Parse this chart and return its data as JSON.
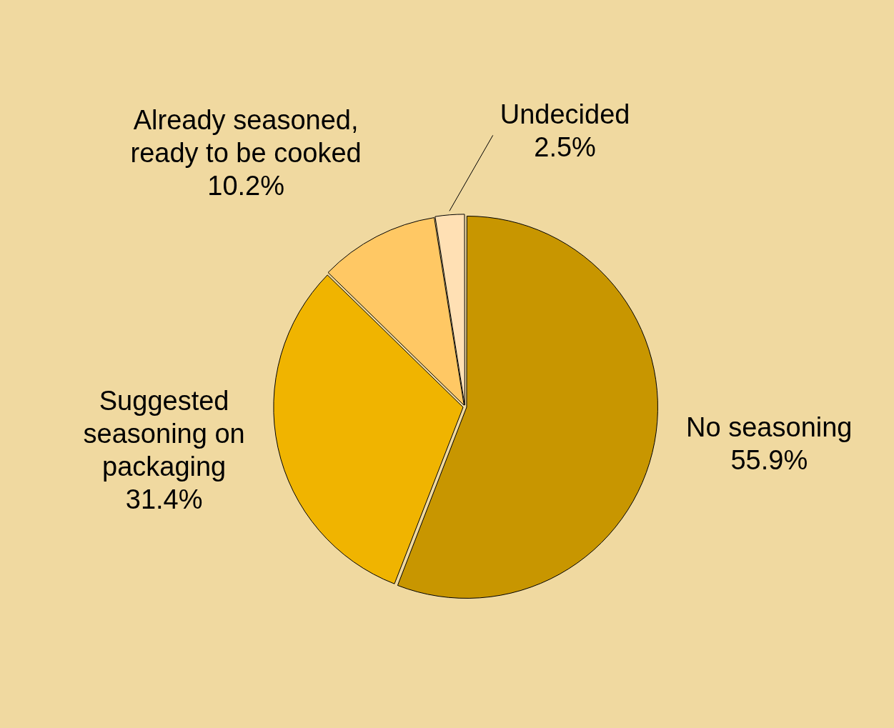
{
  "chart_data": {
    "type": "pie",
    "categories": [
      "No seasoning",
      "Suggested seasoning on packaging",
      "Already seasoned, ready to be cooked",
      "Undecided"
    ],
    "values": [
      55.9,
      31.4,
      10.2,
      2.5
    ],
    "colors": [
      "#c89600",
      "#f0b400",
      "#ffc864",
      "#ffe0b4"
    ],
    "value_labels": [
      "55.9%",
      "31.4%",
      "10.2%",
      "2.5%"
    ],
    "legend": false
  }
}
